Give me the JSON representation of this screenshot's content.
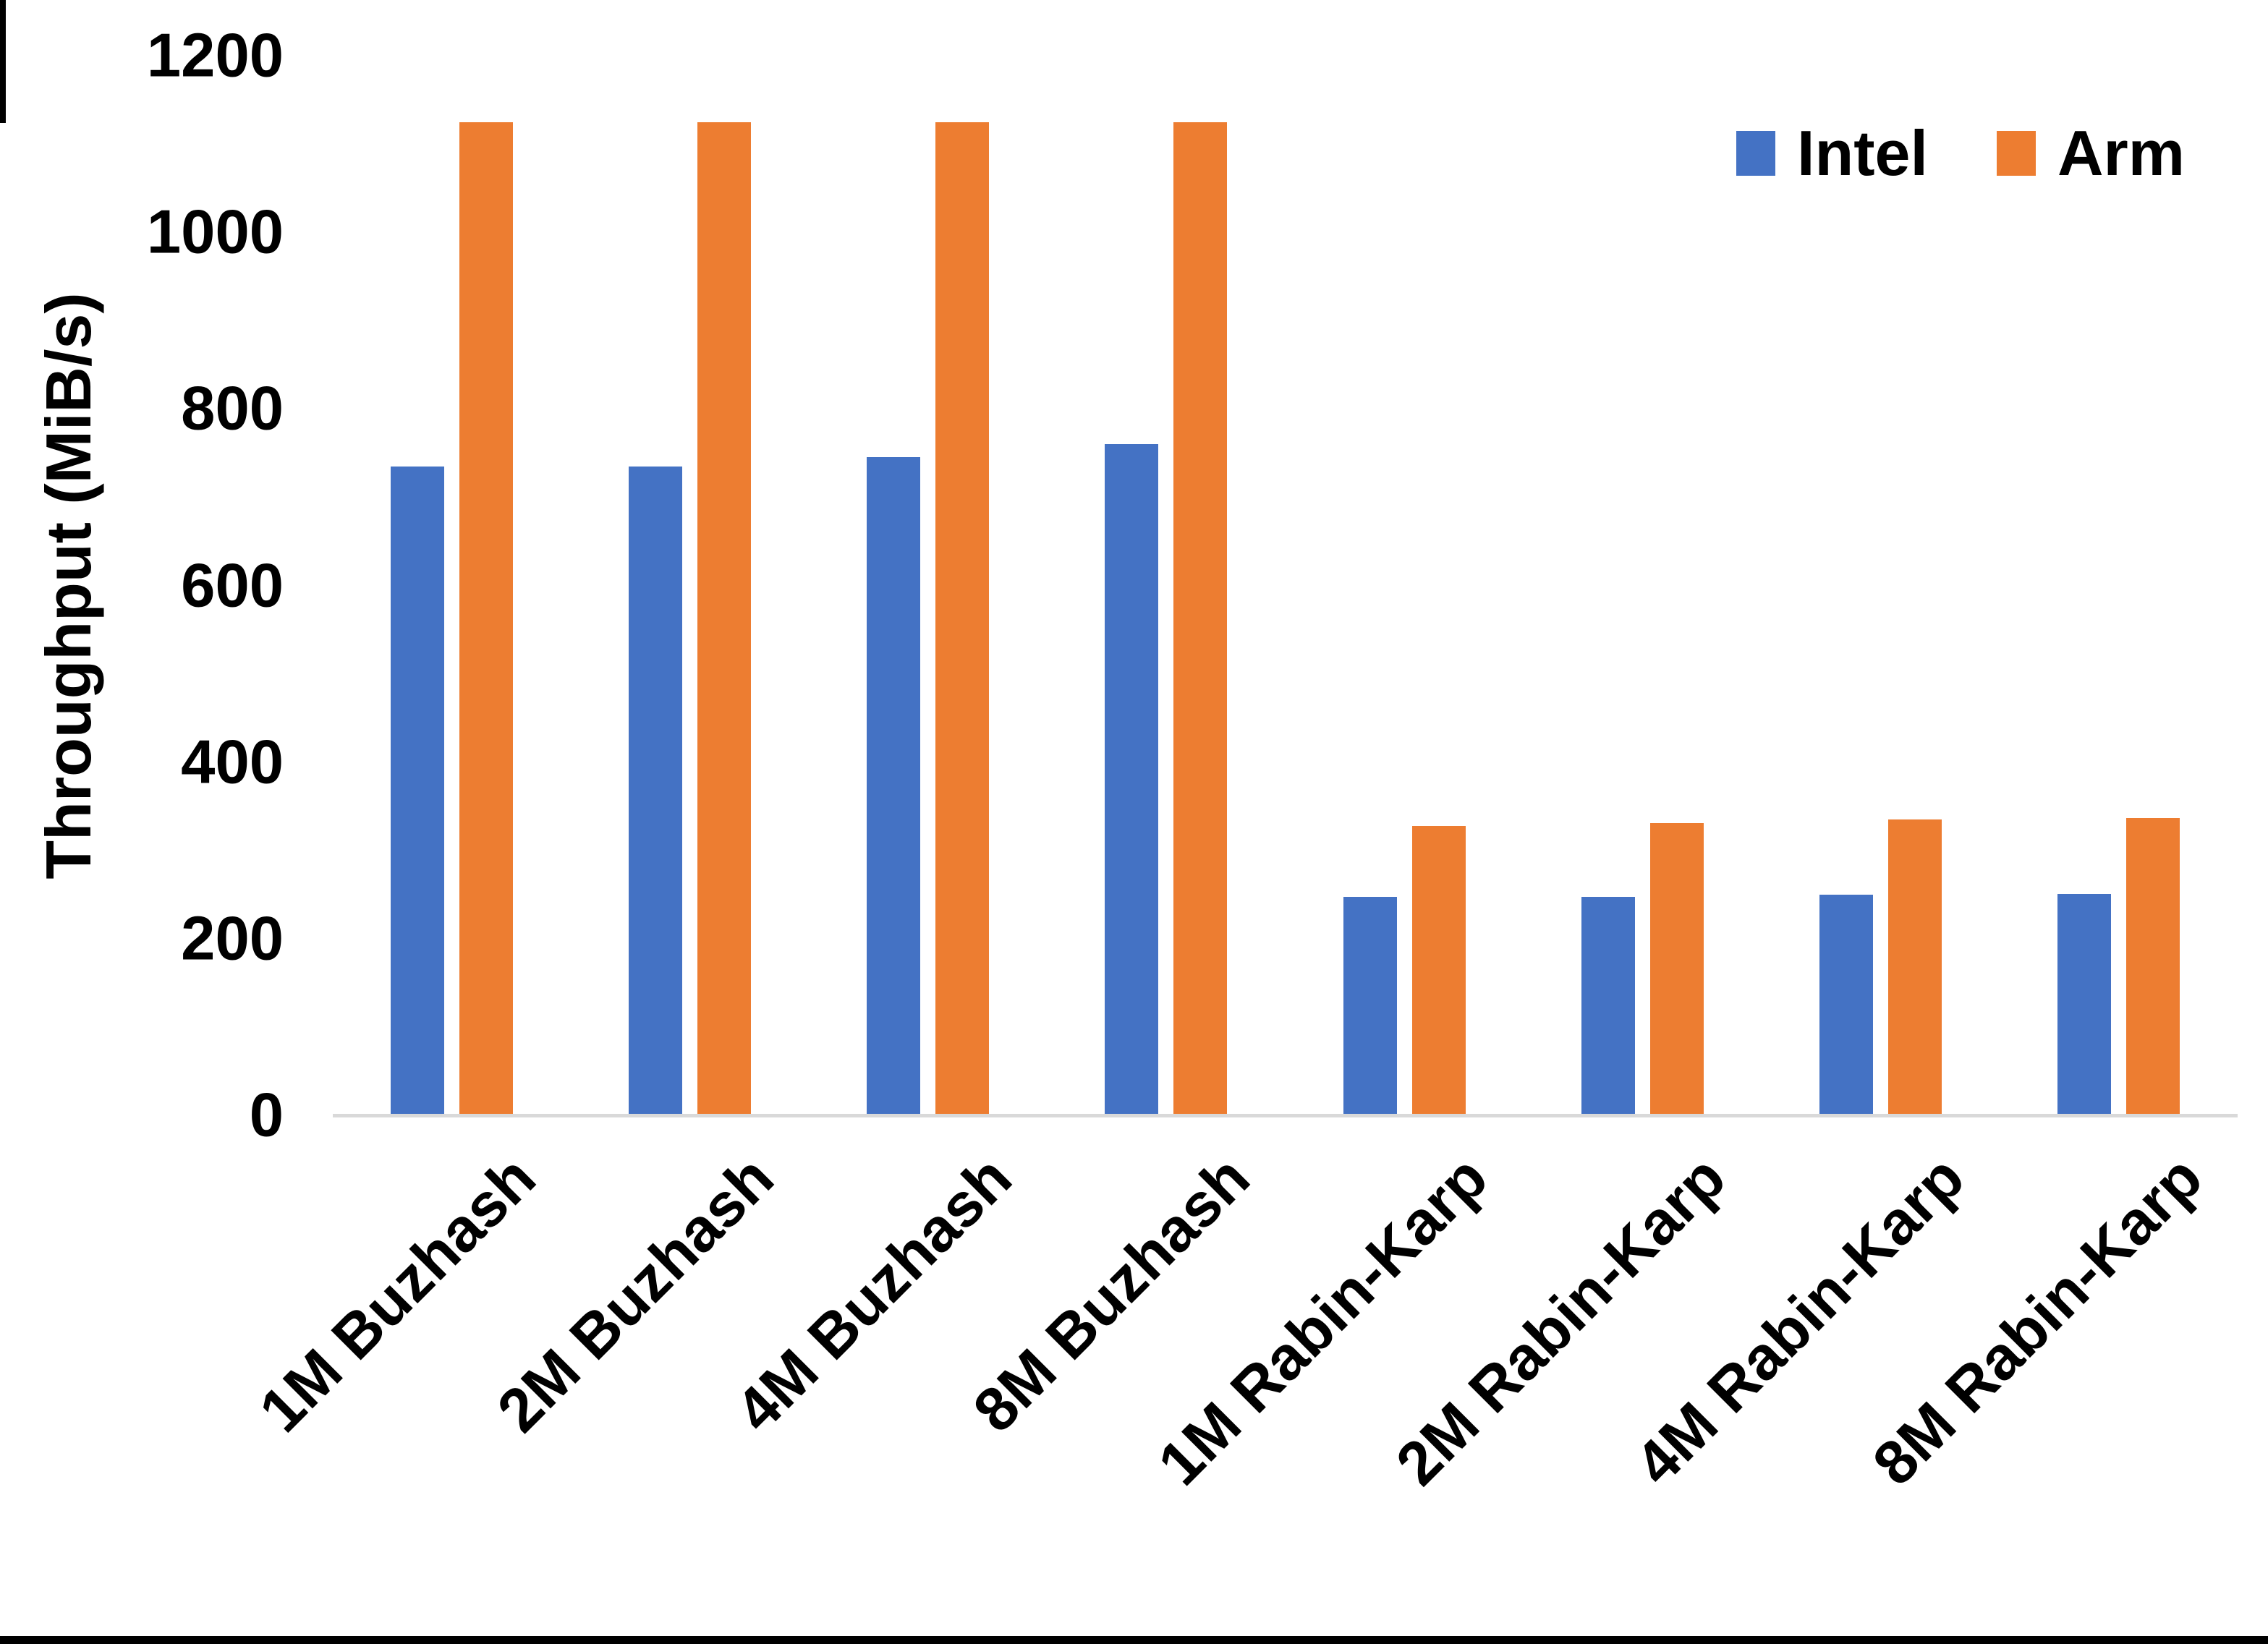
{
  "chart_data": {
    "type": "bar",
    "title": "",
    "ylabel": "Throughput (MiB/s)",
    "xlabel": "",
    "ylim": [
      0,
      1200
    ],
    "yticks": [
      0,
      200,
      400,
      600,
      800,
      1000,
      1200
    ],
    "grid": false,
    "legend_position": "top-right",
    "categories": [
      "1M Buzhash",
      "2M Buzhash",
      "4M Buzhash",
      "8M Buzhash",
      "1M Rabin-Karp",
      "2M Rabin-Karp",
      "4M Rabin-Karp",
      "8M Rabin-Karp"
    ],
    "series": [
      {
        "name": "Intel",
        "color": "#4472C4",
        "values": [
          735,
          735,
          745,
          760,
          247,
          247,
          250,
          251
        ]
      },
      {
        "name": "Arm",
        "color": "#ED7D31",
        "values": [
          1125,
          1125,
          1125,
          1125,
          328,
          331,
          335,
          337
        ]
      }
    ],
    "axis_line_color": "#d9d9d9",
    "text_color": "#000000"
  }
}
